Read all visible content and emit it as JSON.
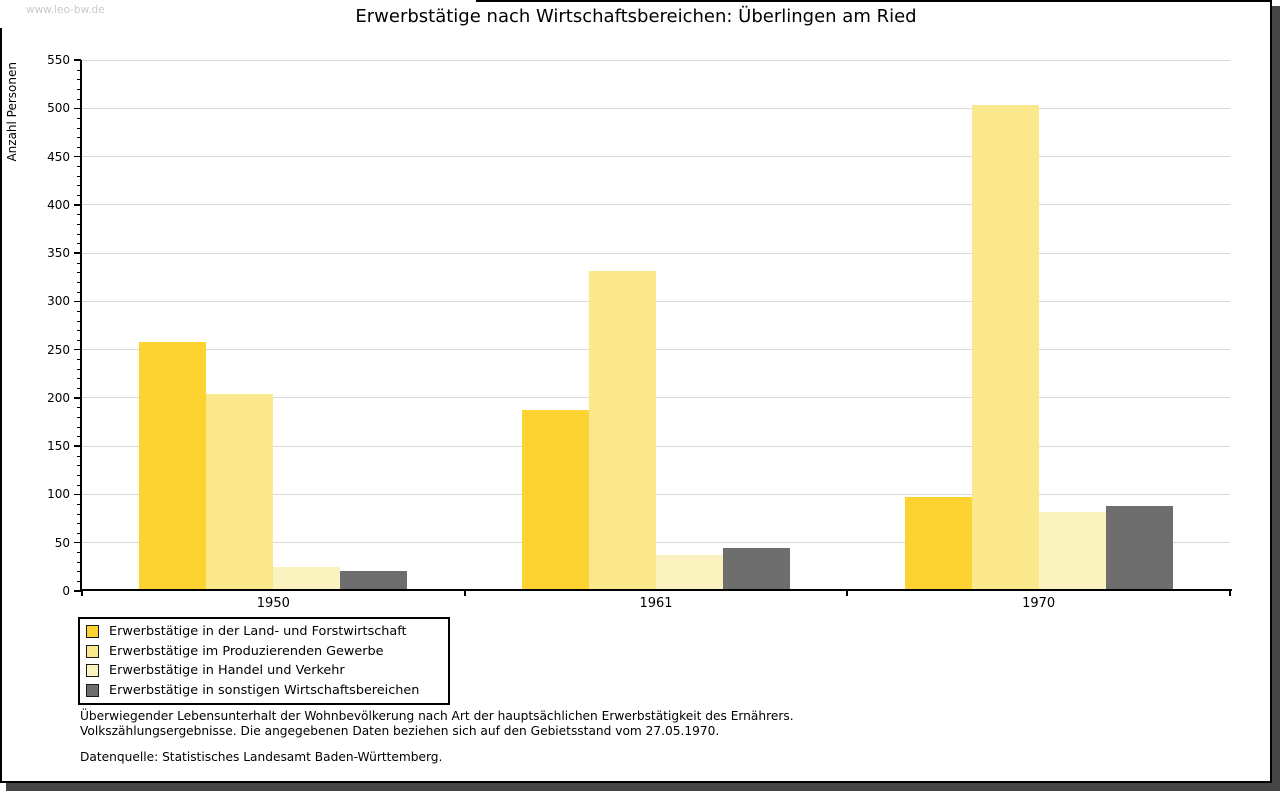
{
  "watermark": "www.leo-bw.de",
  "chart_data": {
    "type": "bar",
    "title": "Erwerbstätige nach Wirtschaftsbereichen: Überlingen am Ried",
    "xlabel": "",
    "ylabel": "Anzahl Personen",
    "categories": [
      "1950",
      "1961",
      "1970"
    ],
    "series": [
      {
        "name": "Erwerbstätige in der Land- und Forstwirtschaft",
        "color": "#fcd330",
        "values": [
          258,
          187,
          97
        ]
      },
      {
        "name": "Erwerbstätige im Produzierenden Gewerbe",
        "color": "#fbe88c",
        "values": [
          204,
          331,
          503
        ]
      },
      {
        "name": "Erwerbstätige in Handel und Verkehr",
        "color": "#fbf3bf",
        "values": [
          25,
          37,
          82
        ]
      },
      {
        "name": "Erwerbstätige in sonstigen Wirtschaftsbereichen",
        "color": "#6e6e6e",
        "values": [
          21,
          44,
          88
        ]
      }
    ],
    "ylim": [
      0,
      550
    ],
    "ytick_step": 50,
    "minor_tick_step": 10,
    "ytick_labels": [
      "0",
      "50",
      "100",
      "150",
      "200",
      "250",
      "300",
      "350",
      "400",
      "450",
      "500",
      "550"
    ],
    "grid": "horizontal-major",
    "legend_position": "bottom-left",
    "colors": {
      "grid": "#d9d9d9",
      "axis": "#000000",
      "watermark": "#c9c9c9",
      "frame_shadow": "#454545"
    }
  },
  "footer": {
    "line1": "Überwiegender Lebensunterhalt der Wohnbevölkerung nach Art der hauptsächlichen Erwerbstätigkeit des Ernährers.",
    "line2": "Volkszählungsergebnisse. Die angegebenen Daten beziehen sich auf den Gebietsstand vom 27.05.1970.",
    "source": "Datenquelle: Statistisches Landesamt Baden-Württemberg."
  }
}
